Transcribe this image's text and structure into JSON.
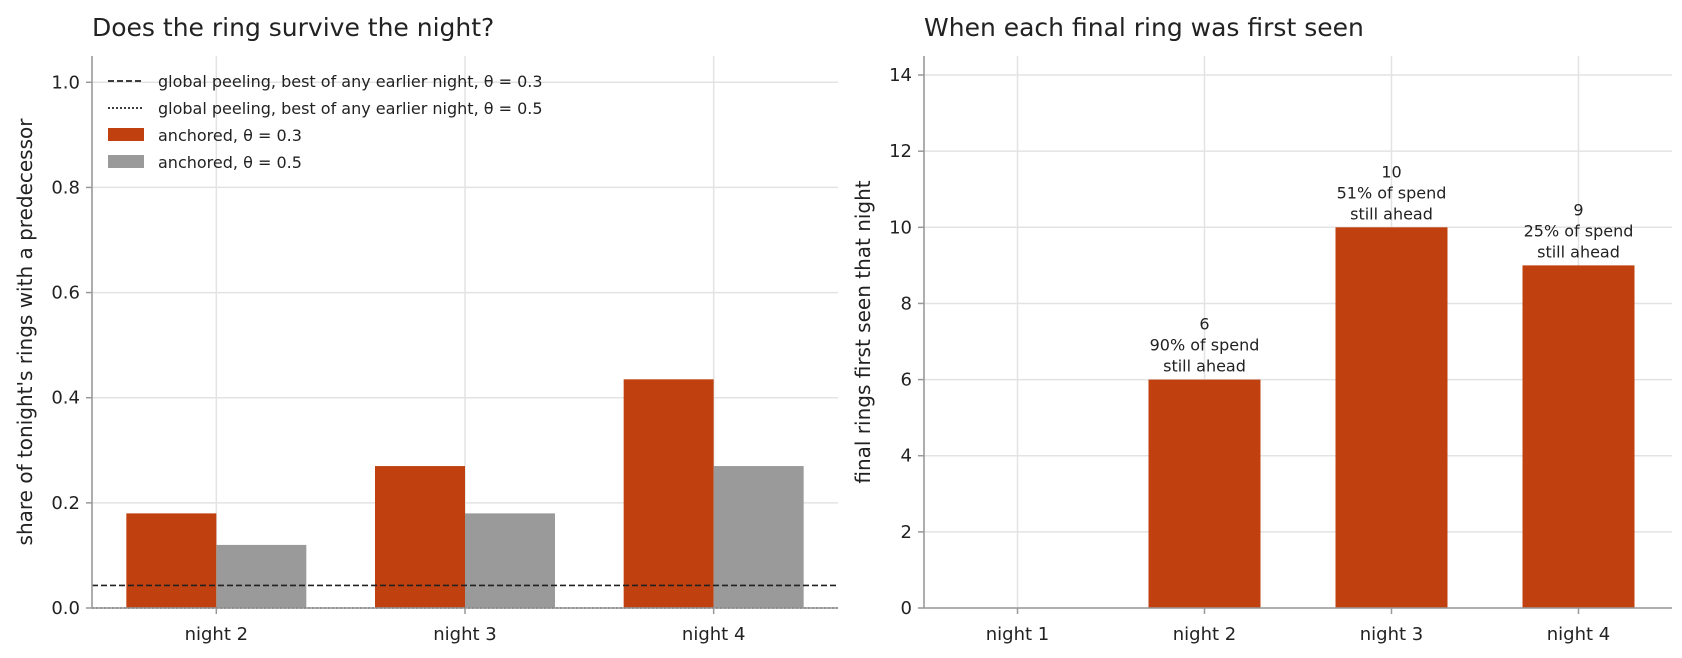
{
  "colors": {
    "anchored_03": "#c0410f",
    "anchored_05": "#9a9a9a",
    "reference": "#222222"
  },
  "chart_data": [
    {
      "type": "bar",
      "title": "Does the ring survive the night?",
      "xlabel": "",
      "ylabel": "share of tonight's rings with a predecessor",
      "ylim": [
        0,
        1.05
      ],
      "yticks": [
        "0.0",
        "0.2",
        "0.4",
        "0.6",
        "0.8",
        "1.0"
      ],
      "categories": [
        "night 2",
        "night 3",
        "night 4"
      ],
      "grid": true,
      "legend_position": "top-left",
      "series": [
        {
          "name": "anchored, θ = 0.3",
          "values": [
            0.18,
            0.27,
            0.435
          ]
        },
        {
          "name": "anchored, θ = 0.5",
          "values": [
            0.12,
            0.18,
            0.27
          ]
        }
      ],
      "reference_lines": [
        {
          "name": "global peeling, best of any earlier night, θ = 0.3",
          "style": "dashed",
          "value": 0.043
        },
        {
          "name": "global peeling, best of any earlier night, θ = 0.5",
          "style": "dotted",
          "value": 0.0
        }
      ]
    },
    {
      "type": "bar",
      "title": "When each final ring was first seen",
      "xlabel": "",
      "ylabel": "final rings first seen that night",
      "ylim": [
        0,
        14.5
      ],
      "yticks": [
        "0",
        "2",
        "4",
        "6",
        "8",
        "10",
        "12",
        "14"
      ],
      "categories": [
        "night 1",
        "night 2",
        "night 3",
        "night 4"
      ],
      "grid": true,
      "values": [
        0,
        6,
        10,
        9
      ],
      "annotations": [
        [],
        [
          "6",
          "90% of spend",
          "still ahead"
        ],
        [
          "10",
          "51% of spend",
          "still ahead"
        ],
        [
          "9",
          "25% of spend",
          "still ahead"
        ]
      ]
    }
  ]
}
